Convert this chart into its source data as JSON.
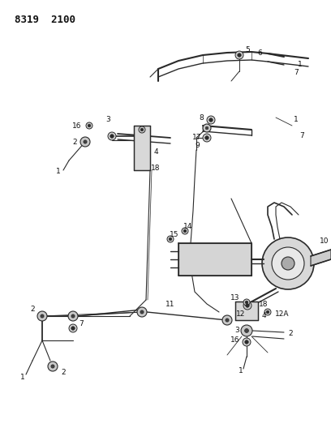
{
  "title": "8319  2100",
  "bg_color": "#ffffff",
  "line_color": "#2a2a2a",
  "label_color": "#111111",
  "label_fontsize": 6.5,
  "fig_width": 4.08,
  "fig_height": 5.33,
  "dpi": 100
}
